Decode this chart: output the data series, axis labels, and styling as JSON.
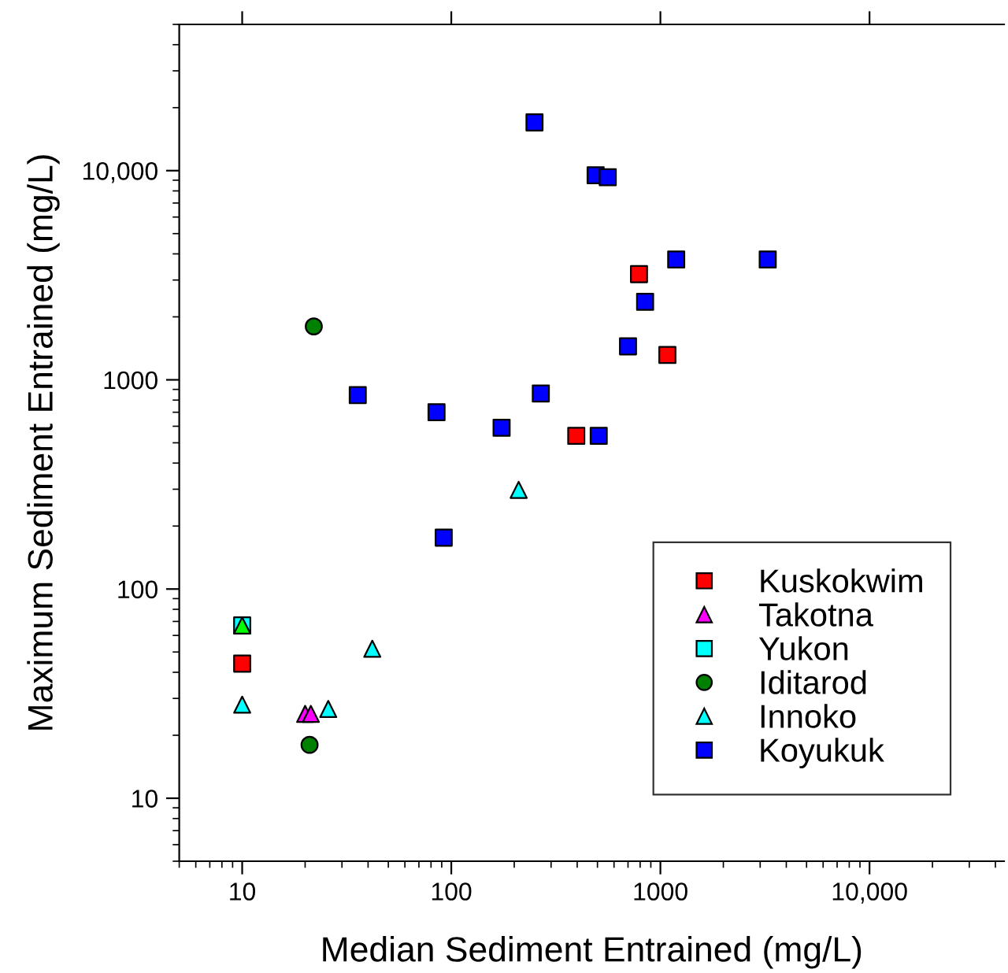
{
  "chart_data": {
    "type": "scatter",
    "xlabel": "Median Sediment Entrained (mg/L)",
    "ylabel": "Maximum Sediment Entrained (mg/L)",
    "log": "xy",
    "xlim": [
      5,
      44000
    ],
    "ylim": [
      5,
      50000
    ],
    "xticks": [
      10,
      100,
      1000,
      {
        "value": 10000,
        "label": "10,000"
      }
    ],
    "yticks": [
      10,
      100,
      1000,
      {
        "value": 10000,
        "label": "10,000"
      }
    ],
    "grid": false,
    "legend": "bottom right",
    "series": [
      {
        "name": "Kuskokwim",
        "color": "#ff0000",
        "marker": "square",
        "x": [
          790,
          1080,
          396,
          10
        ],
        "values": [
          3200,
          1315,
          540,
          44
        ]
      },
      {
        "name": "Takotna",
        "color": "#ff00ff",
        "marker": "triangle",
        "x": [
          20,
          21.3
        ],
        "values": [
          25.3,
          25.3
        ]
      },
      {
        "name": "Yukon",
        "color": "#00ffff",
        "marker": "square",
        "x": [
          10
        ],
        "values": [
          67
        ]
      },
      {
        "name": "Iditarod",
        "color": "#008000",
        "marker": "circle",
        "x": [
          22,
          21
        ],
        "values": [
          1800,
          18
        ]
      },
      {
        "name": "Innoko",
        "color": "#00ffff",
        "marker": "triangle",
        "x": [
          10,
          25.8,
          41.9,
          210
        ],
        "values": [
          28,
          26.7,
          51.8,
          298
        ]
      },
      {
        "name": "Koyukuk",
        "color": "#0000ff",
        "marker": "square",
        "x": [
          250,
          490,
          560,
          1190,
          3260,
          845,
          700,
          35.7,
          85,
          174,
          268,
          507,
          92
        ],
        "values": [
          17000,
          9500,
          9300,
          3760,
          3760,
          2360,
          1445,
          845,
          700,
          590,
          860,
          540,
          176
        ]
      },
      {
        "color": "#00ff00",
        "marker": "triangle",
        "x": [
          10
        ],
        "values": [
          67
        ]
      }
    ]
  }
}
